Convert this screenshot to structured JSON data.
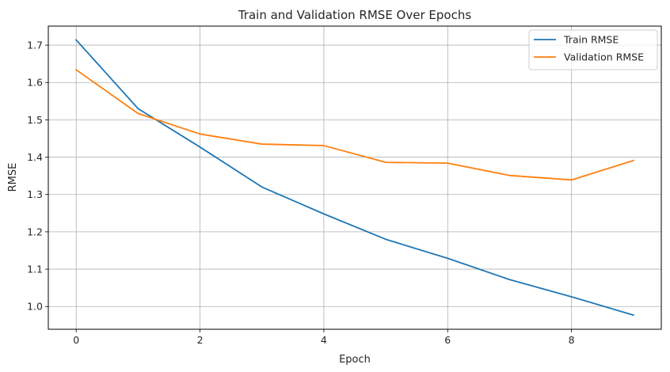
{
  "chart_data": {
    "type": "line",
    "title": "Train and Validation RMSE Over Epochs",
    "xlabel": "Epoch",
    "ylabel": "RMSE",
    "x": [
      0,
      1,
      2,
      3,
      4,
      5,
      6,
      7,
      8,
      9
    ],
    "xlim": [
      -0.45,
      9.45
    ],
    "ylim": [
      0.939,
      1.751
    ],
    "xticks": [
      0,
      2,
      4,
      6,
      8
    ],
    "yticks": [
      1.0,
      1.1,
      1.2,
      1.3,
      1.4,
      1.5,
      1.6,
      1.7
    ],
    "xtick_labels": [
      "0",
      "2",
      "4",
      "6",
      "8"
    ],
    "ytick_labels": [
      "1.0",
      "1.1",
      "1.2",
      "1.3",
      "1.4",
      "1.5",
      "1.6",
      "1.7"
    ],
    "grid": true,
    "legend_position": "top-right",
    "series": [
      {
        "name": "Train RMSE",
        "color": "#1f77b4",
        "values": [
          1.714,
          1.53,
          1.427,
          1.32,
          1.248,
          1.18,
          1.129,
          1.072,
          1.026,
          0.977
        ]
      },
      {
        "name": "Validation RMSE",
        "color": "#ff7f0e",
        "values": [
          1.634,
          1.517,
          1.462,
          1.435,
          1.431,
          1.386,
          1.384,
          1.351,
          1.339,
          1.391
        ]
      }
    ]
  }
}
